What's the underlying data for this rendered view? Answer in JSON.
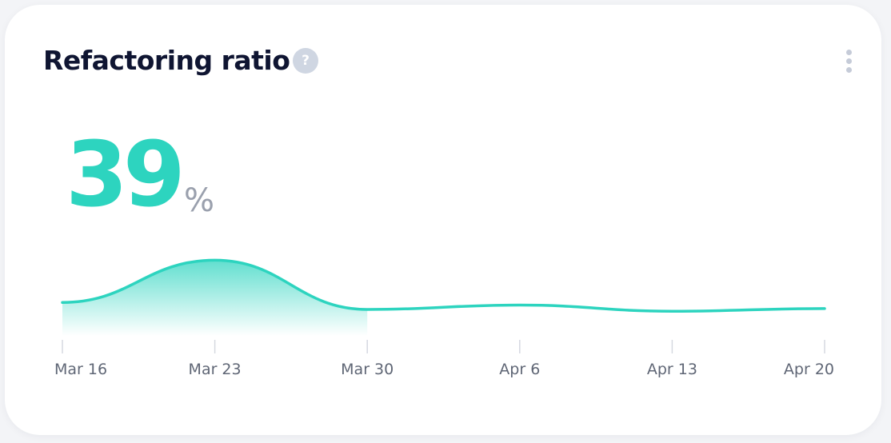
{
  "card": {
    "title": "Refactoring ratio",
    "help_glyph": "?",
    "help_icon": "question-circle-icon",
    "menu_icon": "kebab-vertical-icon"
  },
  "metric": {
    "value": "39",
    "unit": "%"
  },
  "colors": {
    "accent": "#2dd4bf",
    "title": "#0f1532",
    "muted": "#9aa0ad",
    "help_bg": "#cfd6e2"
  },
  "chart_data": {
    "type": "area",
    "title": "",
    "xlabel": "",
    "ylabel": "",
    "x": [
      "Mar 16",
      "Mar 23",
      "Mar 30",
      "Apr 6",
      "Apr 13",
      "Apr 20"
    ],
    "series": [
      {
        "values": [
          38,
          86,
          30,
          35,
          28,
          31
        ]
      }
    ],
    "ylim": [
      0,
      100
    ],
    "grid": false,
    "legend": "none"
  }
}
